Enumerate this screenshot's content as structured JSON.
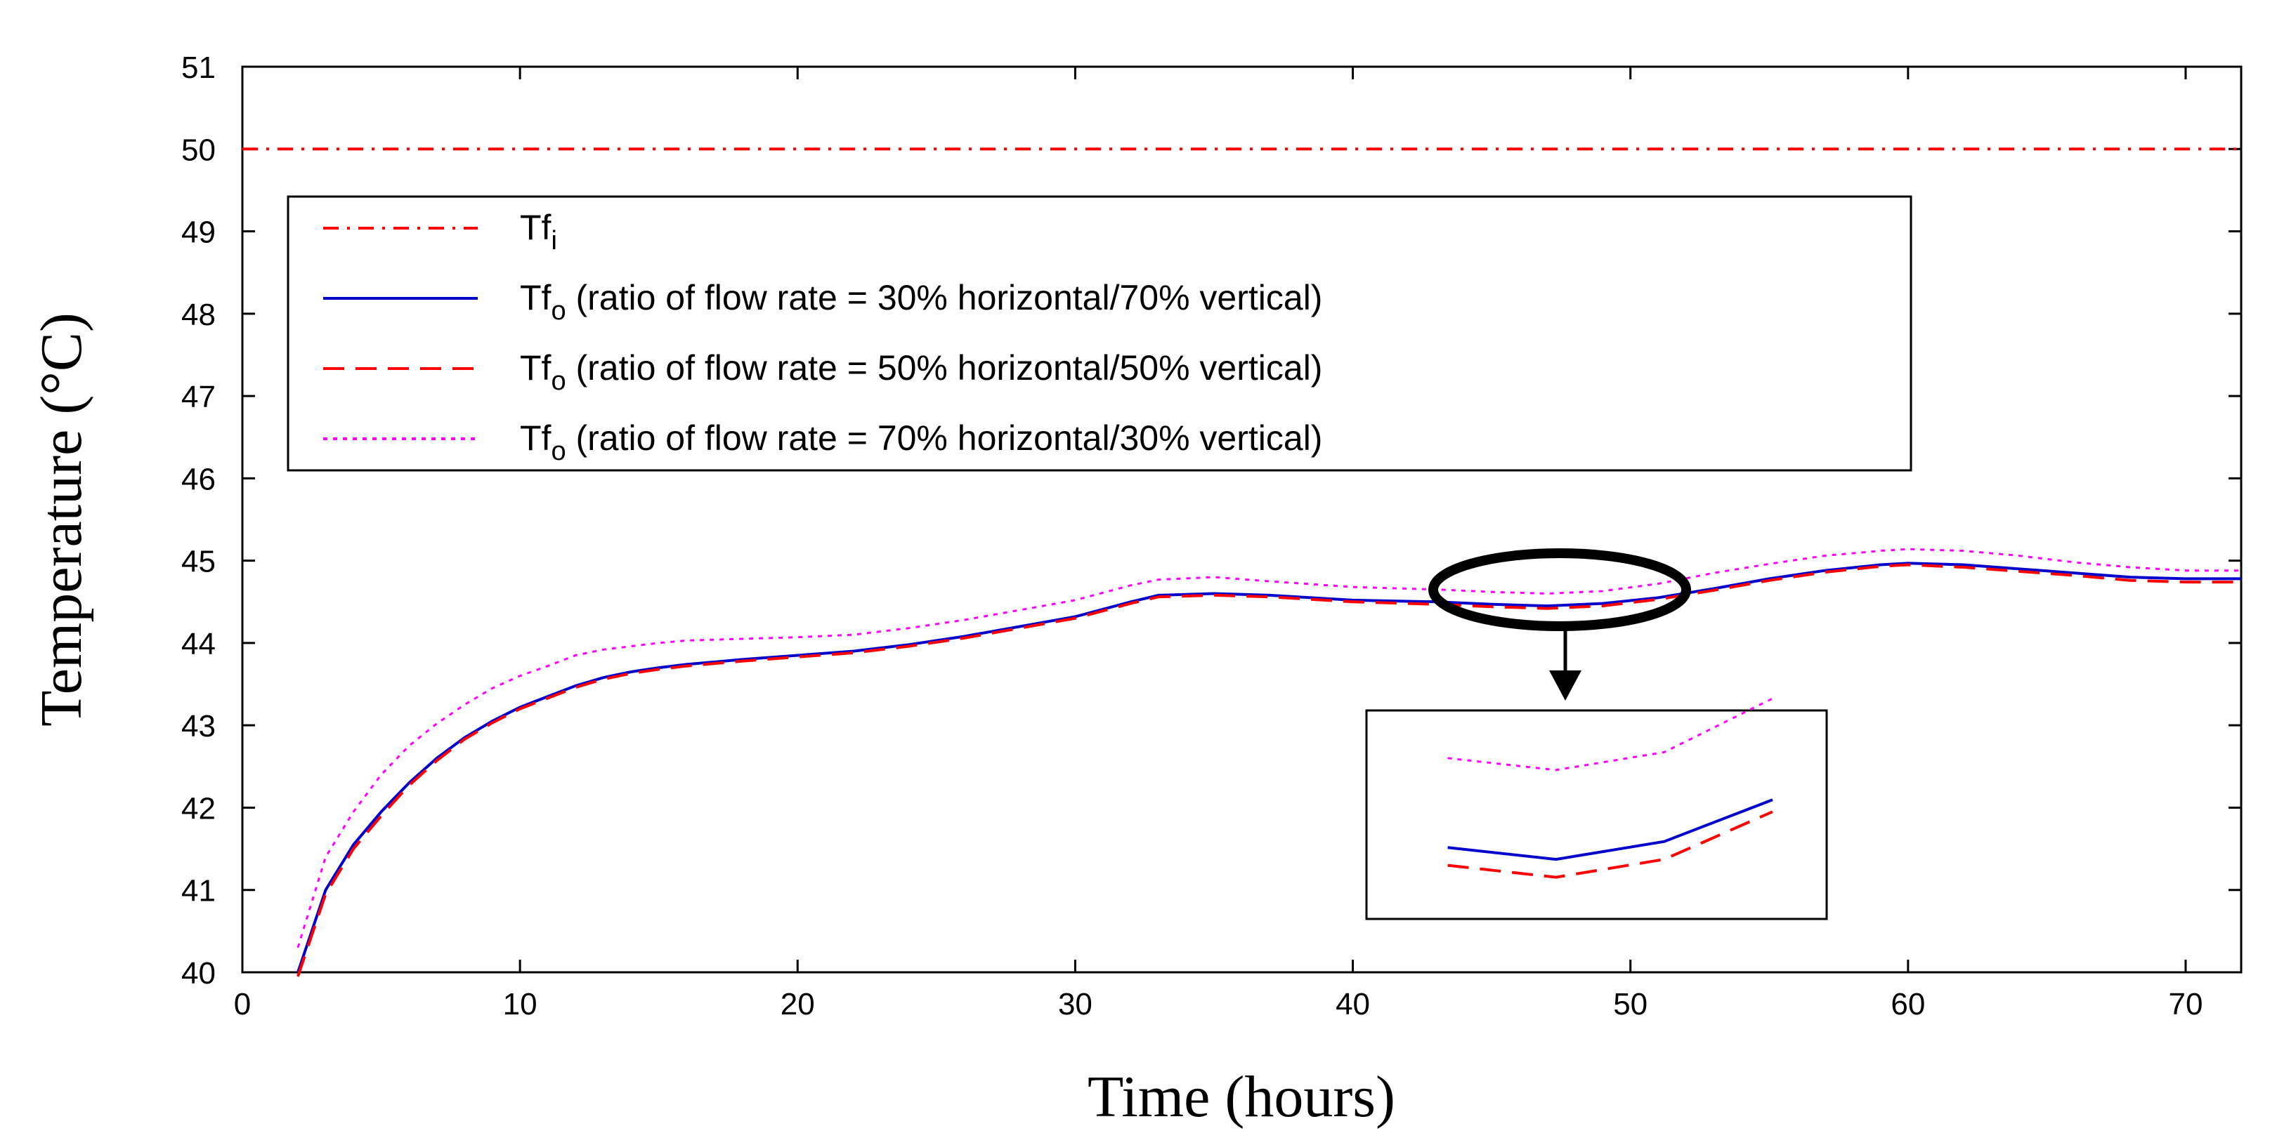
{
  "chart_data": {
    "type": "line",
    "title": "",
    "xlabel": "Time (hours)",
    "ylabel": "Temperature (°C)",
    "xlim": [
      0,
      72
    ],
    "ylim": [
      40,
      51
    ],
    "xticks": [
      "0",
      "10",
      "20",
      "30",
      "40",
      "50",
      "60",
      "70"
    ],
    "yticks": [
      "40",
      "41",
      "42",
      "43",
      "44",
      "45",
      "46",
      "47",
      "48",
      "49",
      "50",
      "51"
    ],
    "legend_position": "top-left",
    "series": [
      {
        "name": "Tf",
        "subscript": "i",
        "label_rest": "",
        "color": "#ff0000",
        "style": "dashdot",
        "x": [
          0,
          72
        ],
        "y": [
          50,
          50
        ]
      },
      {
        "name": "Tf",
        "subscript": "o",
        "label_rest": " (ratio of flow rate = 30% horizontal/70% vertical)",
        "color": "#0000cc",
        "style": "solid",
        "x": [
          2,
          3,
          4,
          5,
          6,
          7,
          8,
          9,
          10,
          11,
          12,
          13,
          14,
          15,
          16,
          18,
          20,
          22,
          24,
          26,
          28,
          30,
          32,
          33,
          35,
          37,
          40,
          43,
          45,
          47,
          49,
          51,
          53,
          55,
          57,
          59,
          60,
          62,
          64,
          66,
          68,
          70,
          72
        ],
        "y": [
          40.0,
          41.0,
          41.55,
          41.95,
          42.3,
          42.6,
          42.85,
          43.05,
          43.22,
          43.35,
          43.48,
          43.58,
          43.65,
          43.7,
          43.74,
          43.8,
          43.85,
          43.9,
          43.98,
          44.08,
          44.2,
          44.32,
          44.5,
          44.58,
          44.6,
          44.58,
          44.52,
          44.5,
          44.47,
          44.45,
          44.48,
          44.55,
          44.66,
          44.78,
          44.88,
          44.95,
          44.97,
          44.95,
          44.9,
          44.85,
          44.8,
          44.78,
          44.78
        ]
      },
      {
        "name": "Tf",
        "subscript": "o",
        "label_rest": " (ratio of flow rate = 50% horizontal/50% vertical)",
        "color": "#ff0000",
        "style": "dashed",
        "x": [
          2,
          3,
          4,
          5,
          6,
          7,
          8,
          9,
          10,
          11,
          12,
          13,
          14,
          15,
          16,
          18,
          20,
          22,
          24,
          26,
          28,
          30,
          32,
          33,
          35,
          37,
          40,
          43,
          45,
          47,
          49,
          51,
          53,
          55,
          57,
          59,
          60,
          62,
          64,
          66,
          68,
          70,
          72
        ],
        "y": [
          39.95,
          40.95,
          41.5,
          41.9,
          42.27,
          42.57,
          42.83,
          43.03,
          43.2,
          43.33,
          43.46,
          43.56,
          43.63,
          43.68,
          43.72,
          43.78,
          43.83,
          43.88,
          43.96,
          44.06,
          44.18,
          44.3,
          44.48,
          44.56,
          44.58,
          44.56,
          44.5,
          44.47,
          44.44,
          44.42,
          44.45,
          44.53,
          44.64,
          44.76,
          44.86,
          44.93,
          44.95,
          44.92,
          44.87,
          44.82,
          44.76,
          44.74,
          44.74
        ]
      },
      {
        "name": "Tf",
        "subscript": "o",
        "label_rest": " (ratio of flow rate = 70% horizontal/30% vertical)",
        "color": "#ff00ff",
        "style": "dotted",
        "x": [
          2,
          3,
          4,
          5,
          6,
          7,
          8,
          9,
          10,
          11,
          12,
          13,
          14,
          15,
          16,
          18,
          20,
          22,
          24,
          26,
          28,
          30,
          32,
          33,
          35,
          37,
          40,
          43,
          45,
          47,
          49,
          51,
          53,
          55,
          57,
          59,
          60,
          62,
          64,
          66,
          68,
          70,
          72
        ],
        "y": [
          40.3,
          41.4,
          41.95,
          42.4,
          42.75,
          43.02,
          43.25,
          43.45,
          43.6,
          43.72,
          43.85,
          43.92,
          43.96,
          44.0,
          44.03,
          44.05,
          44.07,
          44.1,
          44.18,
          44.28,
          44.4,
          44.52,
          44.7,
          44.77,
          44.8,
          44.75,
          44.68,
          44.65,
          44.62,
          44.6,
          44.63,
          44.72,
          44.85,
          44.96,
          45.06,
          45.12,
          45.14,
          45.12,
          45.06,
          44.98,
          44.92,
          44.88,
          44.88
        ]
      }
    ],
    "annotations": [
      {
        "type": "zoom-inset",
        "description_ellipse_center": [
          47,
          44.55
        ],
        "inset_x_range": [
          43.5,
          52
        ],
        "inset_y_range": [
          44.35,
          44.7
        ]
      }
    ]
  }
}
